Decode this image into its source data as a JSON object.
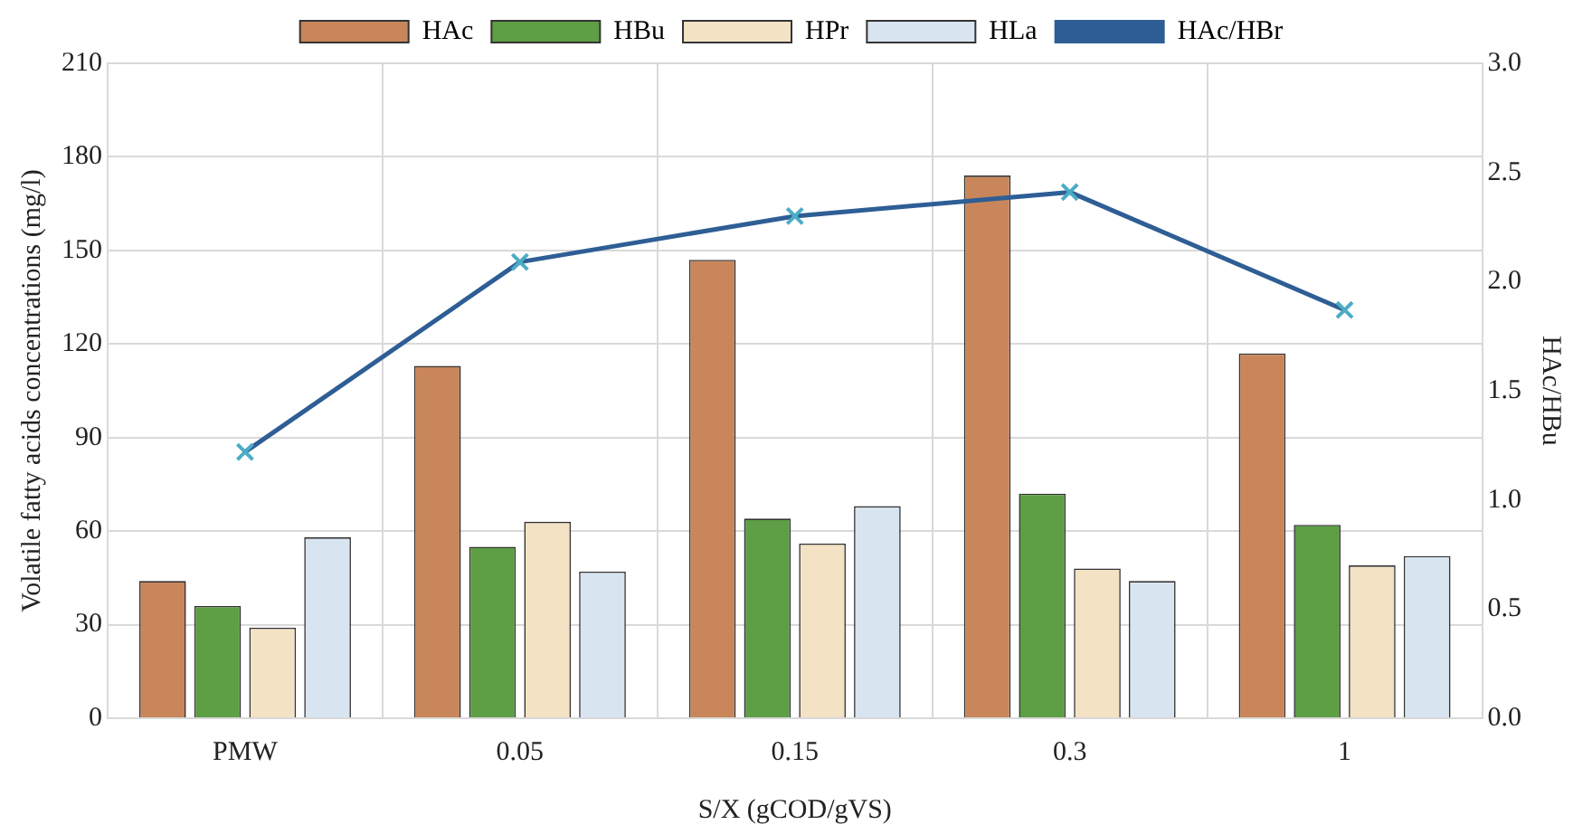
{
  "chart_data": {
    "type": "bar",
    "xlabel": "S/X (gCOD/gVS)",
    "ylabel": "Volatile fatty acids concentrations (mg/l)",
    "y2label": "HAc/HBu",
    "categories": [
      "PMW",
      "0.05",
      "0.15",
      "0.3",
      "1"
    ],
    "series": [
      {
        "name": "HAc",
        "color": "#c8865a",
        "values": [
          44,
          113,
          147,
          174,
          117
        ]
      },
      {
        "name": "HBu",
        "color": "#5e9e45",
        "values": [
          36,
          55,
          64,
          72,
          62
        ]
      },
      {
        "name": "HPr",
        "color": "#f3e2c4",
        "values": [
          29,
          63,
          56,
          48,
          49
        ]
      },
      {
        "name": "HLa",
        "color": "#d9e4f1",
        "values": [
          58,
          47,
          68,
          44,
          52
        ]
      },
      {
        "name": "HAc/HBr",
        "type": "line",
        "axis": "y2",
        "color": "#2e5e95",
        "values": [
          1.22,
          2.09,
          2.3,
          2.41,
          1.87
        ]
      }
    ],
    "ylim": [
      0,
      210
    ],
    "yticks": [
      0,
      30,
      60,
      90,
      120,
      150,
      180,
      210
    ],
    "y2lim": [
      0,
      3
    ],
    "y2ticks": [
      {
        "value": 0,
        "label": "0.0"
      },
      {
        "value": 0.5,
        "label": "0.5"
      },
      {
        "value": 1,
        "label": "1.0"
      },
      {
        "value": 1.5,
        "label": "1.5"
      },
      {
        "value": 2,
        "label": "2.0"
      },
      {
        "value": 2.5,
        "label": "2.5"
      },
      {
        "value": 3,
        "label": "3.0"
      }
    ],
    "grid": true,
    "legend": "top",
    "marker": "cross",
    "line_style": "solid"
  }
}
